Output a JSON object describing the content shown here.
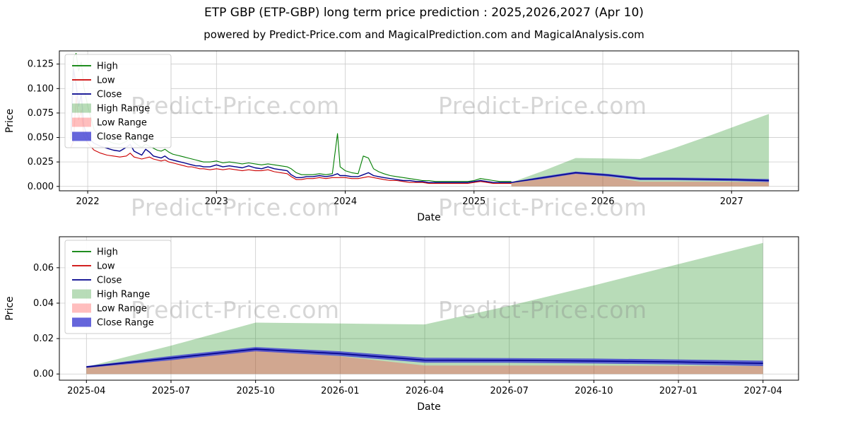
{
  "chart_data": {
    "type": "line",
    "title": "ETP GBP (ETP-GBP) long term price prediction : 2025,2026,2027 (Apr 10)",
    "subtitle": "powered by Predict-Price.com and MagicalPrediction.com and MagicalAnalysis.com",
    "watermark": "Predict-Price.com",
    "legend": [
      {
        "label": "High",
        "kind": "line",
        "color": "#007d00"
      },
      {
        "label": "Low",
        "kind": "line",
        "color": "#cc0000"
      },
      {
        "label": "Close",
        "kind": "line",
        "color": "#00008b"
      },
      {
        "label": "High Range",
        "kind": "patch",
        "color": "rgba(0,128,0,0.28)"
      },
      {
        "label": "Low Range",
        "kind": "patch",
        "color": "rgba(255,70,70,0.35)"
      },
      {
        "label": "Close Range",
        "kind": "patch",
        "color": "rgba(62,62,210,0.8)"
      }
    ],
    "colors": {
      "high": "#007d00",
      "low": "#cc0000",
      "close": "#00008b",
      "high_range": "rgba(0,128,0,0.28)",
      "low_range": "rgba(255,70,70,0.35)",
      "close_range": "rgba(62,62,210,0.8)"
    },
    "historical": {
      "x": [
        2021.87,
        2021.89,
        2021.91,
        2021.93,
        2021.95,
        2021.97,
        2022.0,
        2022.05,
        2022.1,
        2022.15,
        2022.2,
        2022.25,
        2022.3,
        2022.33,
        2022.36,
        2022.39,
        2022.42,
        2022.45,
        2022.48,
        2022.51,
        2022.54,
        2022.57,
        2022.6,
        2022.63,
        2022.66,
        2022.69,
        2022.72,
        2022.75,
        2022.78,
        2022.81,
        2022.84,
        2022.87,
        2022.9,
        2022.95,
        2023.0,
        2023.05,
        2023.1,
        2023.15,
        2023.2,
        2023.25,
        2023.3,
        2023.35,
        2023.4,
        2023.45,
        2023.5,
        2023.55,
        2023.58,
        2023.62,
        2023.66,
        2023.7,
        2023.75,
        2023.8,
        2023.85,
        2023.9,
        2023.94,
        2023.96,
        2024.0,
        2024.05,
        2024.1,
        2024.14,
        2024.18,
        2024.22,
        2024.26,
        2024.3,
        2024.35,
        2024.4,
        2024.45,
        2024.5,
        2024.55,
        2024.6,
        2024.65,
        2024.7,
        2024.75,
        2024.8,
        2024.85,
        2024.9,
        2024.95,
        2025.0,
        2025.05,
        2025.1,
        2025.15,
        2025.2,
        2025.25,
        2025.29
      ],
      "high": [
        0.058,
        0.132,
        0.136,
        0.118,
        0.127,
        0.102,
        0.082,
        0.058,
        0.05,
        0.047,
        0.044,
        0.043,
        0.046,
        0.05,
        0.045,
        0.042,
        0.04,
        0.043,
        0.041,
        0.039,
        0.037,
        0.036,
        0.038,
        0.035,
        0.033,
        0.032,
        0.031,
        0.03,
        0.029,
        0.028,
        0.027,
        0.026,
        0.025,
        0.025,
        0.026,
        0.024,
        0.025,
        0.024,
        0.023,
        0.024,
        0.023,
        0.022,
        0.023,
        0.022,
        0.021,
        0.02,
        0.018,
        0.014,
        0.012,
        0.012,
        0.012,
        0.013,
        0.012,
        0.013,
        0.054,
        0.02,
        0.016,
        0.014,
        0.013,
        0.031,
        0.029,
        0.018,
        0.015,
        0.013,
        0.011,
        0.01,
        0.009,
        0.008,
        0.007,
        0.006,
        0.006,
        0.005,
        0.005,
        0.005,
        0.005,
        0.005,
        0.005,
        0.006,
        0.008,
        0.007,
        0.006,
        0.005,
        0.005,
        0.005
      ],
      "low": [
        0.04,
        0.046,
        0.092,
        0.068,
        0.078,
        0.052,
        0.044,
        0.037,
        0.034,
        0.032,
        0.031,
        0.03,
        0.031,
        0.034,
        0.03,
        0.029,
        0.028,
        0.029,
        0.03,
        0.028,
        0.027,
        0.026,
        0.027,
        0.025,
        0.024,
        0.023,
        0.022,
        0.021,
        0.02,
        0.02,
        0.019,
        0.018,
        0.018,
        0.017,
        0.018,
        0.017,
        0.018,
        0.017,
        0.016,
        0.017,
        0.016,
        0.016,
        0.017,
        0.015,
        0.014,
        0.013,
        0.01,
        0.007,
        0.007,
        0.008,
        0.008,
        0.009,
        0.008,
        0.009,
        0.009,
        0.009,
        0.009,
        0.008,
        0.008,
        0.009,
        0.01,
        0.009,
        0.008,
        0.007,
        0.006,
        0.006,
        0.005,
        0.004,
        0.004,
        0.004,
        0.003,
        0.003,
        0.003,
        0.003,
        0.003,
        0.003,
        0.003,
        0.004,
        0.005,
        0.004,
        0.003,
        0.003,
        0.003,
        0.003
      ],
      "close": [
        0.048,
        0.12,
        0.104,
        0.082,
        0.094,
        0.062,
        0.05,
        0.044,
        0.041,
        0.039,
        0.037,
        0.036,
        0.04,
        0.043,
        0.036,
        0.034,
        0.032,
        0.038,
        0.035,
        0.031,
        0.03,
        0.029,
        0.031,
        0.028,
        0.027,
        0.026,
        0.025,
        0.024,
        0.023,
        0.022,
        0.021,
        0.021,
        0.02,
        0.02,
        0.022,
        0.02,
        0.021,
        0.02,
        0.019,
        0.021,
        0.019,
        0.018,
        0.02,
        0.018,
        0.017,
        0.016,
        0.012,
        0.009,
        0.009,
        0.01,
        0.01,
        0.011,
        0.01,
        0.011,
        0.013,
        0.011,
        0.011,
        0.01,
        0.01,
        0.012,
        0.014,
        0.011,
        0.01,
        0.009,
        0.008,
        0.007,
        0.006,
        0.006,
        0.005,
        0.005,
        0.004,
        0.004,
        0.004,
        0.004,
        0.004,
        0.004,
        0.004,
        0.005,
        0.006,
        0.005,
        0.004,
        0.004,
        0.004,
        0.004
      ]
    },
    "forecast": {
      "x_labels": [
        "2025-04",
        "2025-07",
        "2025-10",
        "2026-01",
        "2026-04",
        "2026-07",
        "2026-10",
        "2027-01",
        "2027-04"
      ],
      "x_years": [
        2025.29,
        2025.54,
        2025.79,
        2026.04,
        2026.29,
        2026.54,
        2026.79,
        2027.04,
        2027.29
      ],
      "high": [
        0.004,
        0.016,
        0.029,
        0.0285,
        0.028,
        0.0385,
        0.05,
        0.062,
        0.074
      ],
      "low": [
        0.004,
        0.008,
        0.0135,
        0.01,
        0.0048,
        0.0048,
        0.0047,
        0.0046,
        0.0045
      ],
      "close": [
        0.004,
        0.009,
        0.014,
        0.0115,
        0.0078,
        0.0077,
        0.0073,
        0.0068,
        0.006
      ],
      "close_upper": [
        0.0045,
        0.0102,
        0.0152,
        0.0128,
        0.0092,
        0.009,
        0.0087,
        0.0082,
        0.0075
      ],
      "close_lower": [
        0.0035,
        0.0078,
        0.0128,
        0.0102,
        0.0064,
        0.0063,
        0.0059,
        0.0054,
        0.0045
      ]
    },
    "top_axes": {
      "xlabel": "Date",
      "ylabel": "Price",
      "xlim": [
        2021.78,
        2027.52
      ],
      "ylim": [
        -0.0045,
        0.1385
      ],
      "xticks": [
        {
          "v": 2022,
          "label": "2022"
        },
        {
          "v": 2023,
          "label": "2023"
        },
        {
          "v": 2024,
          "label": "2024"
        },
        {
          "v": 2025,
          "label": "2025"
        },
        {
          "v": 2026,
          "label": "2026"
        },
        {
          "v": 2027,
          "label": "2027"
        }
      ],
      "yticks": [
        {
          "v": 0.0,
          "label": "0.000"
        },
        {
          "v": 0.025,
          "label": "0.025"
        },
        {
          "v": 0.05,
          "label": "0.050"
        },
        {
          "v": 0.075,
          "label": "0.075"
        },
        {
          "v": 0.1,
          "label": "0.100"
        },
        {
          "v": 0.125,
          "label": "0.125"
        }
      ]
    },
    "bottom_axes": {
      "xlabel": "Date",
      "ylabel": "Price",
      "xlim": [
        -0.32,
        8.42
      ],
      "ylim": [
        -0.0035,
        0.0775
      ],
      "xticks": [
        {
          "v": 0,
          "label": "2025-04"
        },
        {
          "v": 1,
          "label": "2025-07"
        },
        {
          "v": 2,
          "label": "2025-10"
        },
        {
          "v": 3,
          "label": "2026-01"
        },
        {
          "v": 4,
          "label": "2026-04"
        },
        {
          "v": 5,
          "label": "2026-07"
        },
        {
          "v": 6,
          "label": "2026-10"
        },
        {
          "v": 7,
          "label": "2027-01"
        },
        {
          "v": 8,
          "label": "2027-04"
        }
      ],
      "yticks": [
        {
          "v": 0.0,
          "label": "0.00"
        },
        {
          "v": 0.02,
          "label": "0.02"
        },
        {
          "v": 0.04,
          "label": "0.04"
        },
        {
          "v": 0.06,
          "label": "0.06"
        }
      ]
    }
  }
}
